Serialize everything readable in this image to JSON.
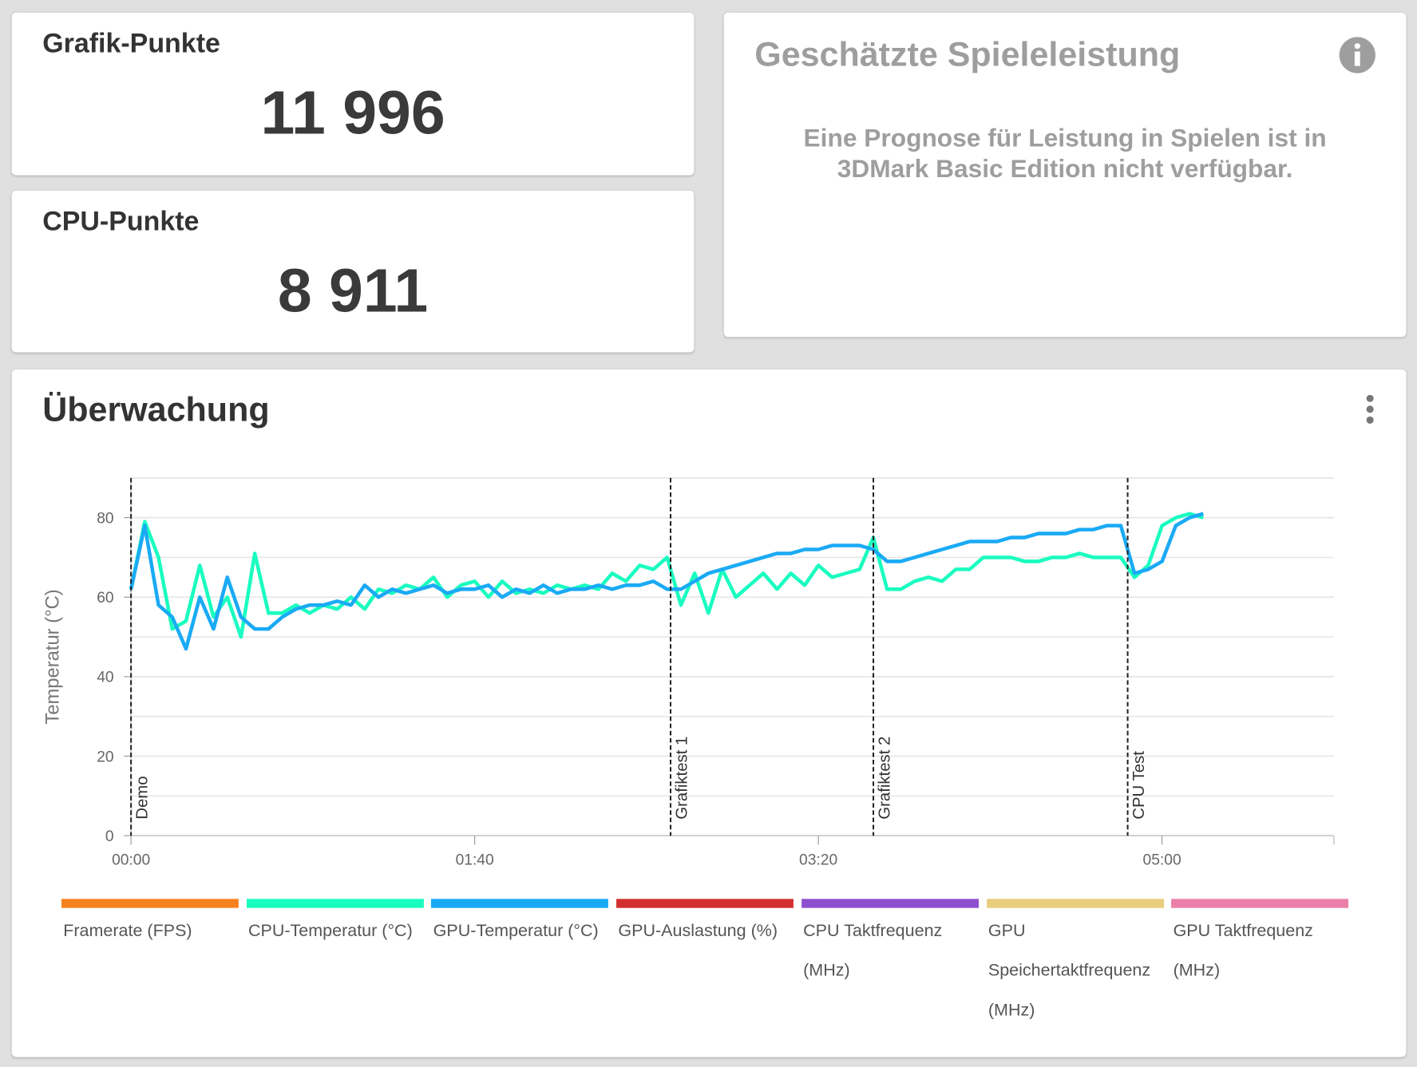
{
  "cards": [
    {
      "title": "Grafik-Punkte",
      "value": "11 996"
    },
    {
      "title": "CPU-Punkte",
      "value": "8 911"
    }
  ],
  "estimate": {
    "title": "Geschätzte Spieleleistung",
    "text": "Eine Prognose für Leistung in Spielen ist in 3DMark Basic Edition nicht verfügbar."
  },
  "monitoring": {
    "title": "Überwachung"
  },
  "chart_data": {
    "type": "line",
    "ylabel": "Temperatur (°C)",
    "xlim": [
      0,
      350
    ],
    "ylim": [
      0,
      90
    ],
    "xticks": [
      {
        "value": 0,
        "label": "00:00"
      },
      {
        "value": 100,
        "label": "01:40"
      },
      {
        "value": 200,
        "label": "03:20"
      },
      {
        "value": 300,
        "label": "05:00"
      }
    ],
    "yticks": [
      0,
      20,
      40,
      60,
      80
    ],
    "grid": [
      0,
      10,
      20,
      30,
      40,
      50,
      60,
      70,
      80,
      90
    ],
    "markers": [
      {
        "label": "Demo",
        "x": 0
      },
      {
        "label": "Grafiktest 1",
        "x": 157
      },
      {
        "label": "Grafiktest 2",
        "x": 216
      },
      {
        "label": "CPU Test",
        "x": 290
      }
    ],
    "x": [
      0,
      4,
      8,
      12,
      16,
      20,
      24,
      28,
      32,
      36,
      40,
      44,
      48,
      52,
      56,
      60,
      64,
      68,
      72,
      76,
      80,
      84,
      88,
      92,
      96,
      100,
      104,
      108,
      112,
      116,
      120,
      124,
      128,
      132,
      136,
      140,
      144,
      148,
      152,
      156,
      160,
      164,
      168,
      172,
      176,
      180,
      184,
      188,
      192,
      196,
      200,
      204,
      208,
      212,
      216,
      220,
      224,
      228,
      232,
      236,
      240,
      244,
      248,
      252,
      256,
      260,
      264,
      268,
      272,
      276,
      280,
      284,
      288,
      292,
      296,
      300,
      304,
      308,
      312
    ],
    "series": [
      {
        "name": "Framerate (FPS)",
        "color": "#f5821f"
      },
      {
        "name": "CPU-Temperatur (°C)",
        "color": "#1afcc0",
        "values": [
          62,
          79,
          70,
          52,
          54,
          68,
          55,
          60,
          50,
          71,
          56,
          56,
          58,
          56,
          58,
          57,
          60,
          57,
          62,
          61,
          63,
          62,
          65,
          60,
          63,
          64,
          60,
          64,
          61,
          62,
          61,
          63,
          62,
          63,
          62,
          66,
          64,
          68,
          67,
          70,
          58,
          66,
          56,
          67,
          60,
          63,
          66,
          62,
          66,
          63,
          68,
          65,
          66,
          67,
          75,
          62,
          62,
          64,
          65,
          64,
          67,
          67,
          70,
          70,
          70,
          69,
          69,
          70,
          70,
          71,
          70,
          70,
          70,
          65,
          68,
          78,
          80,
          81,
          80
        ]
      },
      {
        "name": "GPU-Temperatur (°C)",
        "color": "#1aaaf5",
        "values": [
          62,
          78,
          58,
          55,
          47,
          60,
          52,
          65,
          55,
          52,
          52,
          55,
          57,
          58,
          58,
          59,
          58,
          63,
          60,
          62,
          61,
          62,
          63,
          61,
          62,
          62,
          63,
          60,
          62,
          61,
          63,
          61,
          62,
          62,
          63,
          62,
          63,
          63,
          64,
          62,
          62,
          64,
          66,
          67,
          68,
          69,
          70,
          71,
          71,
          72,
          72,
          73,
          73,
          73,
          72,
          69,
          69,
          70,
          71,
          72,
          73,
          74,
          74,
          74,
          75,
          75,
          76,
          76,
          76,
          77,
          77,
          78,
          78,
          66,
          67,
          69,
          78,
          80,
          81
        ]
      },
      {
        "name": "GPU-Auslastung (%)",
        "color": "#d32f2f"
      },
      {
        "name": "CPU Taktfrequenz (MHz)",
        "color": "#8e4fcf"
      },
      {
        "name": "GPU Speichertaktfrequenz (MHz)",
        "color": "#e8cd7d"
      },
      {
        "name": "GPU Taktfrequenz (MHz)",
        "color": "#ec7fa9"
      }
    ]
  }
}
